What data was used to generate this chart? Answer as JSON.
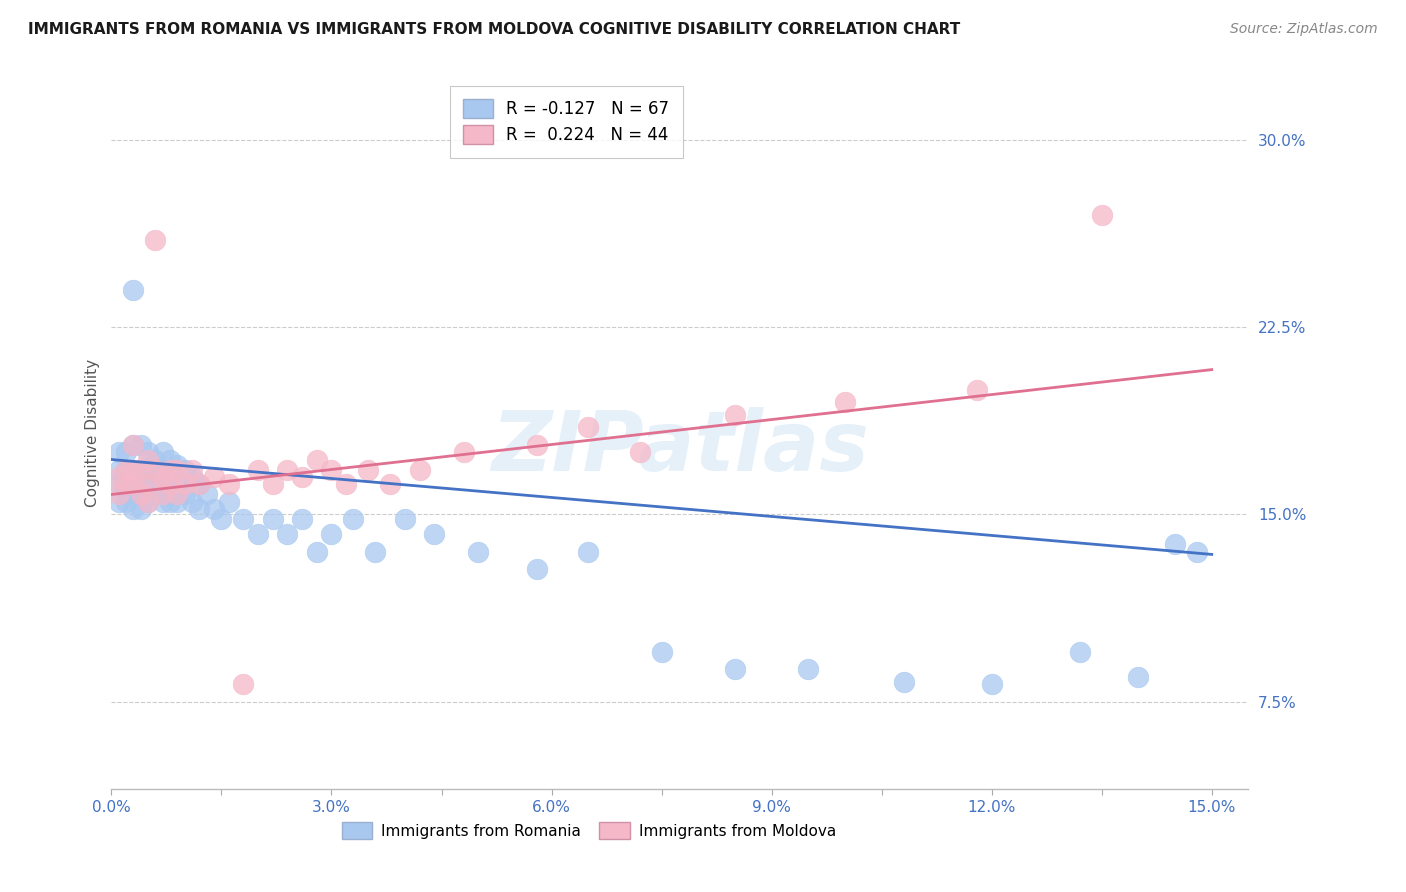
{
  "title": "IMMIGRANTS FROM ROMANIA VS IMMIGRANTS FROM MOLDOVA COGNITIVE DISABILITY CORRELATION CHART",
  "source": "Source: ZipAtlas.com",
  "ylabel": "Cognitive Disability",
  "xlim": [
    0.0,
    0.155
  ],
  "ylim": [
    0.04,
    0.325
  ],
  "yticks": [
    0.075,
    0.15,
    0.225,
    0.3
  ],
  "xticks": [
    0.0,
    0.015,
    0.03,
    0.045,
    0.06,
    0.075,
    0.09,
    0.105,
    0.12,
    0.135,
    0.15
  ],
  "xtick_labels": [
    "0.0%",
    "",
    "3.0%",
    "",
    "6.0%",
    "",
    "9.0%",
    "",
    "12.0%",
    "",
    "15.0%"
  ],
  "romania_color": "#a8c8f0",
  "moldova_color": "#f5b8c8",
  "romania_line_color": "#4472c4",
  "moldova_line_color": "#e07090",
  "romania_R": -0.127,
  "romania_N": 67,
  "moldova_R": 0.224,
  "moldova_N": 44,
  "watermark": "ZIPatlas",
  "romania_line_x0": 0.0,
  "romania_line_y0": 0.172,
  "romania_line_x1": 0.15,
  "romania_line_y1": 0.134,
  "moldova_line_x0": 0.0,
  "moldova_line_y0": 0.158,
  "moldova_line_x1": 0.15,
  "moldova_line_y1": 0.208,
  "romania_x": [
    0.001,
    0.001,
    0.001,
    0.001,
    0.002,
    0.002,
    0.002,
    0.002,
    0.003,
    0.003,
    0.003,
    0.003,
    0.003,
    0.004,
    0.004,
    0.004,
    0.004,
    0.005,
    0.005,
    0.005,
    0.005,
    0.006,
    0.006,
    0.006,
    0.007,
    0.007,
    0.007,
    0.007,
    0.008,
    0.008,
    0.008,
    0.009,
    0.009,
    0.009,
    0.01,
    0.01,
    0.011,
    0.011,
    0.012,
    0.012,
    0.013,
    0.014,
    0.015,
    0.016,
    0.018,
    0.02,
    0.022,
    0.024,
    0.026,
    0.028,
    0.03,
    0.033,
    0.036,
    0.04,
    0.044,
    0.05,
    0.058,
    0.065,
    0.075,
    0.085,
    0.095,
    0.108,
    0.12,
    0.132,
    0.14,
    0.145,
    0.148
  ],
  "romania_y": [
    0.175,
    0.168,
    0.162,
    0.155,
    0.175,
    0.168,
    0.16,
    0.155,
    0.24,
    0.178,
    0.165,
    0.158,
    0.152,
    0.178,
    0.168,
    0.16,
    0.152,
    0.175,
    0.168,
    0.162,
    0.155,
    0.172,
    0.165,
    0.158,
    0.175,
    0.168,
    0.16,
    0.155,
    0.172,
    0.162,
    0.155,
    0.17,
    0.162,
    0.155,
    0.168,
    0.158,
    0.165,
    0.155,
    0.162,
    0.152,
    0.158,
    0.152,
    0.148,
    0.155,
    0.148,
    0.142,
    0.148,
    0.142,
    0.148,
    0.135,
    0.142,
    0.148,
    0.135,
    0.148,
    0.142,
    0.135,
    0.128,
    0.135,
    0.095,
    0.088,
    0.088,
    0.083,
    0.082,
    0.095,
    0.085,
    0.138,
    0.135
  ],
  "moldova_x": [
    0.001,
    0.001,
    0.002,
    0.002,
    0.003,
    0.003,
    0.003,
    0.004,
    0.004,
    0.005,
    0.005,
    0.005,
    0.006,
    0.006,
    0.007,
    0.007,
    0.008,
    0.008,
    0.009,
    0.009,
    0.01,
    0.011,
    0.012,
    0.014,
    0.016,
    0.018,
    0.02,
    0.022,
    0.024,
    0.026,
    0.028,
    0.03,
    0.032,
    0.035,
    0.038,
    0.042,
    0.048,
    0.058,
    0.065,
    0.072,
    0.085,
    0.1,
    0.118,
    0.135
  ],
  "moldova_y": [
    0.165,
    0.158,
    0.168,
    0.162,
    0.178,
    0.168,
    0.162,
    0.168,
    0.158,
    0.172,
    0.162,
    0.155,
    0.26,
    0.168,
    0.165,
    0.158,
    0.168,
    0.162,
    0.168,
    0.158,
    0.162,
    0.168,
    0.162,
    0.165,
    0.162,
    0.082,
    0.168,
    0.162,
    0.168,
    0.165,
    0.172,
    0.168,
    0.162,
    0.168,
    0.162,
    0.168,
    0.175,
    0.178,
    0.185,
    0.175,
    0.19,
    0.195,
    0.2,
    0.27
  ]
}
